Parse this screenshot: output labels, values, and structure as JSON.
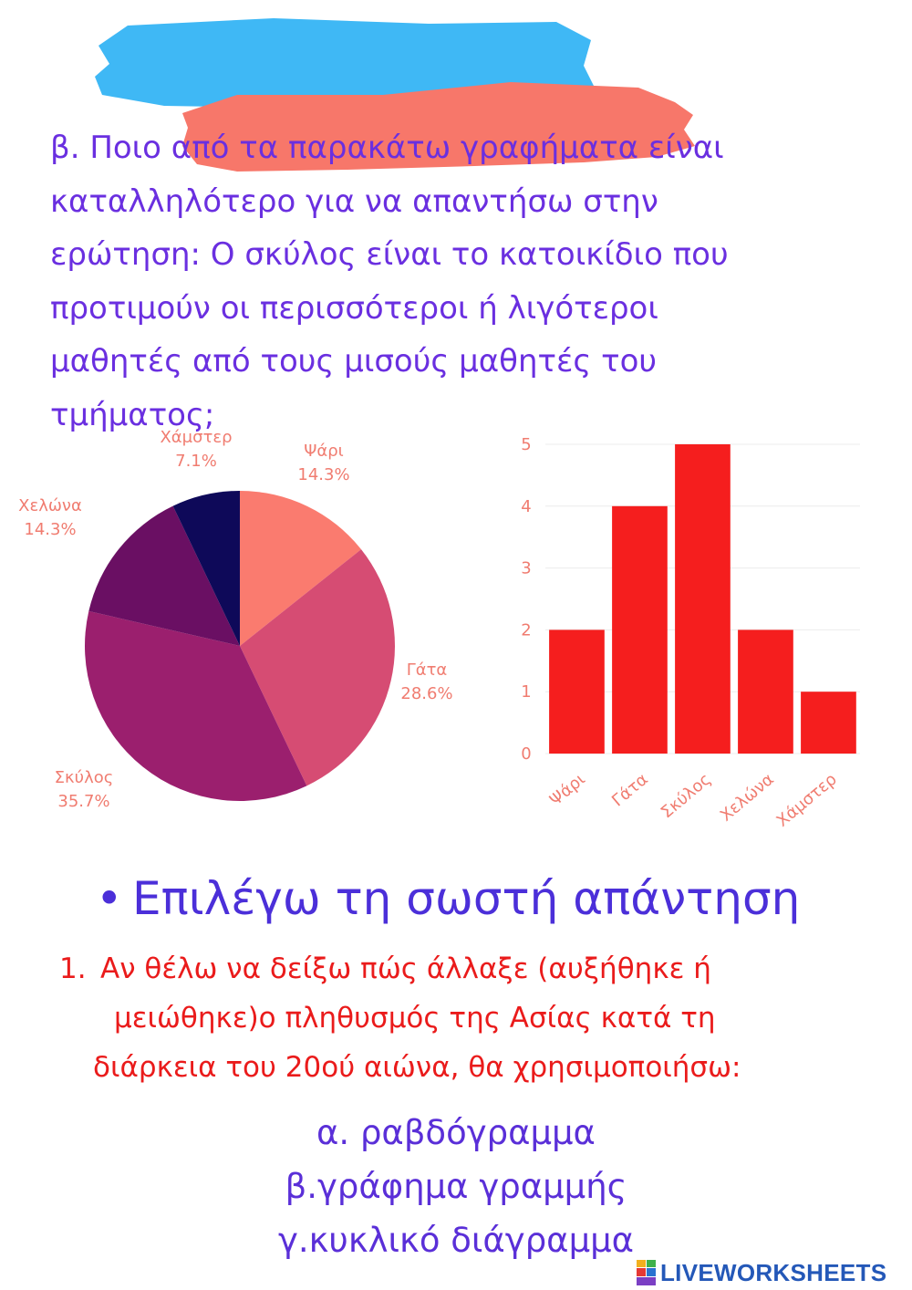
{
  "question": {
    "lines": [
      "β. Ποιο από τα παρακάτω γραφήματα είναι",
      "καταλληλότερο για να απαντήσω στην",
      "ερώτηση: Ο σκύλος είναι το κατοικίδιο που",
      "προτιμούν οι περισσότεροι ή λιγότεροι",
      "μαθητές από τους μισούς μαθητές του",
      "τμήματος;"
    ]
  },
  "chart_data": [
    {
      "type": "pie",
      "slices": [
        {
          "label": "Ψάρι",
          "percent": "14.3%",
          "value": 14.3,
          "color": "#fa7b6f"
        },
        {
          "label": "Γάτα",
          "percent": "28.6%",
          "value": 28.6,
          "color": "#d64c73"
        },
        {
          "label": "Σκύλος",
          "percent": "35.7%",
          "value": 35.7,
          "color": "#9b1f6e"
        },
        {
          "label": "Χελώνα",
          "percent": "14.3%",
          "value": 14.3,
          "color": "#6a0f63"
        },
        {
          "label": "Χάμστερ",
          "percent": "7.1%",
          "value": 7.1,
          "color": "#0e0959"
        }
      ],
      "label_color": "#f07c70"
    },
    {
      "type": "bar",
      "categories": [
        "Ψάρι",
        "Γάτα",
        "Σκύλος",
        "Χελώνα",
        "Χάμστερ"
      ],
      "values": [
        2,
        4,
        5,
        2,
        1
      ],
      "ylim": [
        0,
        5
      ],
      "yticks": [
        "0",
        "1",
        "2",
        "3",
        "4",
        "5"
      ],
      "bar_color": "#f51e1e",
      "label_color": "#f07c70",
      "grid": true
    }
  ],
  "instruction": {
    "bullet": "•",
    "text": "Επιλέγω τη σωστή απάντηση"
  },
  "question1": {
    "number": "1.",
    "lines": [
      "Αν θέλω να δείξω πώς άλλαξε  (αυξήθηκε ή",
      "μειώθηκε)ο πληθυσμός της Ασίας κατά τη",
      "διάρκεια του 20ού αιώνα, θα χρησιμοποιήσω:"
    ]
  },
  "options": [
    "α. ραβδόγραμμα",
    "β.γράφημα γραμμής",
    "γ.κυκλικό διάγραμμα"
  ],
  "colors": {
    "brush_blue": "#3fb8f5",
    "brush_salmon": "#f7776a"
  },
  "brand": {
    "text": "LIVEWORKSHEETS",
    "logo_letters": "LW"
  }
}
